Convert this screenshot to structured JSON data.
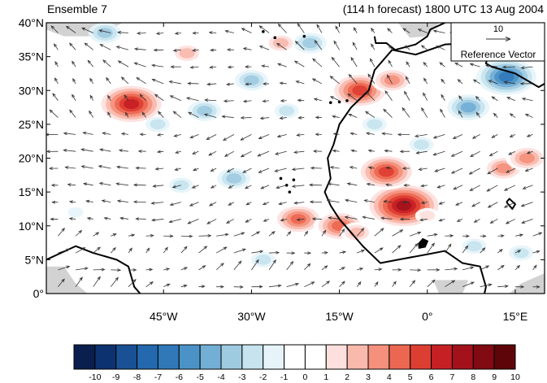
{
  "header": {
    "left_title": "Ensemble 7",
    "right_title": "(114 h forecast) 1800 UTC 13 Aug 2004"
  },
  "map": {
    "lon_range": [
      -65,
      20
    ],
    "lat_range": [
      0,
      40
    ],
    "lat_ticks": [
      {
        "value": 40,
        "label": "40°N"
      },
      {
        "value": 35,
        "label": "35°N"
      },
      {
        "value": 30,
        "label": "30°N"
      },
      {
        "value": 25,
        "label": "25°N"
      },
      {
        "value": 20,
        "label": "20°N"
      },
      {
        "value": 15,
        "label": "15°N"
      },
      {
        "value": 10,
        "label": "10°N"
      },
      {
        "value": 5,
        "label": "5°N"
      },
      {
        "value": 0,
        "label": "0°"
      }
    ],
    "lon_ticks": [
      {
        "value": -45,
        "label": "45°W"
      },
      {
        "value": -30,
        "label": "30°W"
      },
      {
        "value": -15,
        "label": "15°W"
      },
      {
        "value": 0,
        "label": "0°"
      },
      {
        "value": 15,
        "label": "15°E"
      }
    ],
    "land_fill": "#ffffff",
    "missing_fill": "#d2d2d2",
    "coast_color": "#000000",
    "vector_color": "#333333"
  },
  "reference_vector": {
    "magnitude_label": "10",
    "caption": "Reference Vector"
  },
  "colorbar": {
    "labels": [
      "-10",
      "-9",
      "-8",
      "-7",
      "-6",
      "-5",
      "-4",
      "-3",
      "-2",
      "-1",
      "0",
      "1",
      "2",
      "3",
      "4",
      "5",
      "6",
      "7",
      "8",
      "9",
      "10"
    ],
    "colors": [
      "#0a1f4d",
      "#0d3270",
      "#1a5194",
      "#2468ad",
      "#3178b8",
      "#4b93c6",
      "#73aed5",
      "#9fcbe1",
      "#c6e3ee",
      "#e6f4fa",
      "#ffffff",
      "#ffffff",
      "#fde0dd",
      "#f9b9ad",
      "#f4907c",
      "#ec6751",
      "#dd3e32",
      "#c62025",
      "#a3121a",
      "#820a12",
      "#5e0509"
    ]
  },
  "chart_data": {
    "type": "heatmap",
    "title": "Ensemble 7",
    "subtitle": "(114 h forecast) 1800 UTC 13 Aug 2004",
    "x_range_deg_lon": [
      -65,
      20
    ],
    "y_range_deg_lat": [
      0,
      40
    ],
    "scale_min": -10,
    "scale_max": 10,
    "anomaly_centers": [
      {
        "lon": -50.5,
        "lat": 28.0,
        "value": 7
      },
      {
        "lon": -11.5,
        "lat": 30.0,
        "value": 6
      },
      {
        "lon": -6.0,
        "lat": 31.5,
        "value": 4
      },
      {
        "lon": -4.0,
        "lat": 13.0,
        "value": 8
      },
      {
        "lon": -7.0,
        "lat": 18.0,
        "value": 6
      },
      {
        "lon": -22.0,
        "lat": 11.0,
        "value": 5
      },
      {
        "lon": -15.0,
        "lat": 10.0,
        "value": 5
      },
      {
        "lon": -12.0,
        "lat": 9.0,
        "value": 3
      },
      {
        "lon": -41.0,
        "lat": 35.5,
        "value": 3
      },
      {
        "lon": -25.0,
        "lat": 37.0,
        "value": 3
      },
      {
        "lon": 13.0,
        "lat": 18.5,
        "value": 4
      },
      {
        "lon": 17.0,
        "lat": 20.0,
        "value": 4
      },
      {
        "lon": 0.0,
        "lat": 11.5,
        "value": 2
      },
      {
        "lon": -55.0,
        "lat": 38.5,
        "value": -3
      },
      {
        "lon": -20.0,
        "lat": 37.0,
        "value": -3
      },
      {
        "lon": 13.5,
        "lat": 32.0,
        "value": -6
      },
      {
        "lon": 7.0,
        "lat": 27.5,
        "value": -4
      },
      {
        "lon": -46.0,
        "lat": 25.0,
        "value": -2
      },
      {
        "lon": -38.0,
        "lat": 27.0,
        "value": -3
      },
      {
        "lon": -30.0,
        "lat": 31.5,
        "value": -3
      },
      {
        "lon": -24.0,
        "lat": 27.0,
        "value": -2
      },
      {
        "lon": -33.0,
        "lat": 17.0,
        "value": -3
      },
      {
        "lon": -42.0,
        "lat": 16.0,
        "value": -2
      },
      {
        "lon": -9.0,
        "lat": 25.0,
        "value": -2
      },
      {
        "lon": -1.0,
        "lat": 22.0,
        "value": -2
      },
      {
        "lon": 8.0,
        "lat": 7.0,
        "value": -2
      },
      {
        "lon": -28.0,
        "lat": 5.0,
        "value": -2
      },
      {
        "lon": 16.0,
        "lat": 6.0,
        "value": -2
      },
      {
        "lon": -60.0,
        "lat": 12.0,
        "value": -1
      }
    ]
  }
}
